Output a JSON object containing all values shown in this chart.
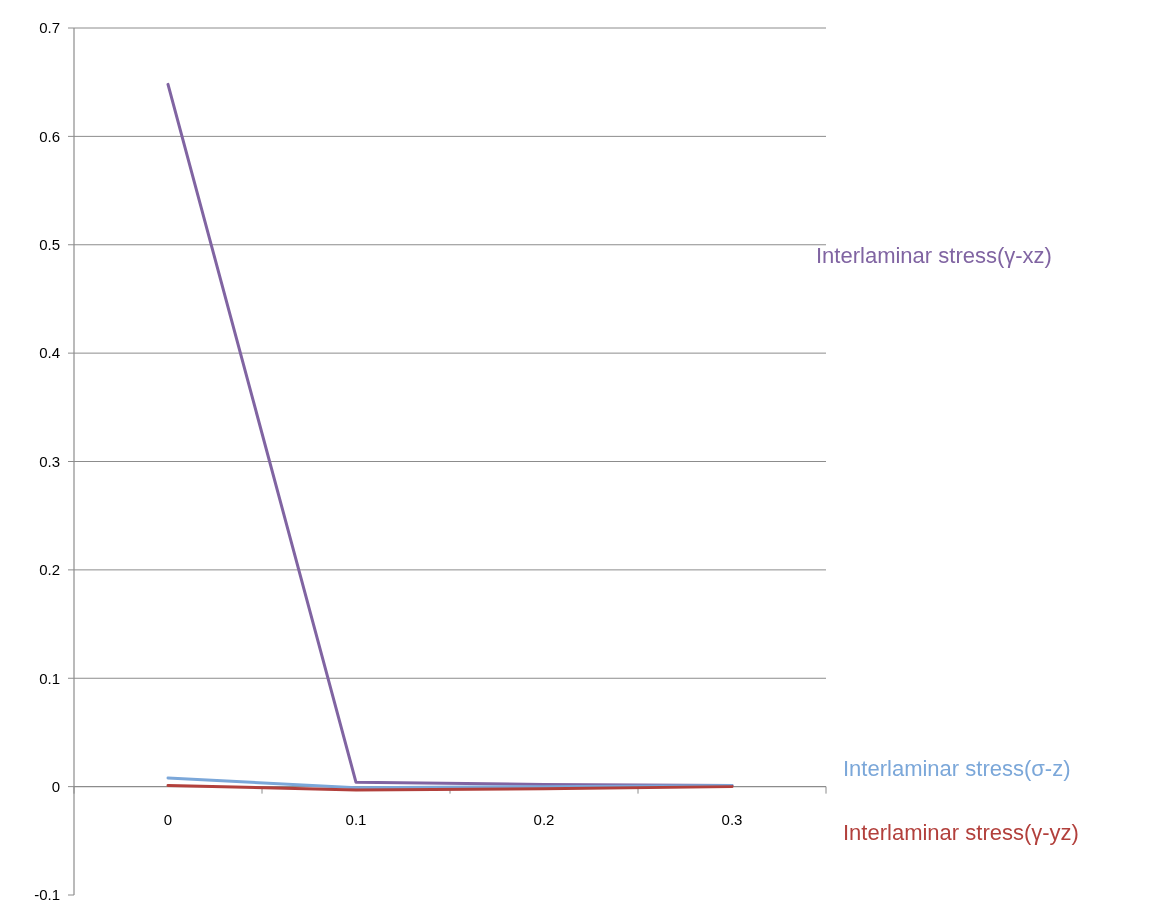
{
  "chart_data": {
    "type": "line",
    "categories": [
      "0",
      "0.1",
      "0.2",
      "0.3"
    ],
    "series": [
      {
        "name": "Interlaminar stress(γ-xz)",
        "color": "#8064a2",
        "values": [
          0.648,
          0.004,
          0.002,
          0.001
        ]
      },
      {
        "name": "Interlaminar stress(σ-z)",
        "color": "#7ba7d9",
        "values": [
          0.008,
          -0.001,
          0.0,
          0.001
        ]
      },
      {
        "name": "Interlaminar stress(γ-yz)",
        "color": "#b2403c",
        "values": [
          0.001,
          -0.003,
          -0.002,
          0.0
        ]
      }
    ],
    "ylim": [
      -0.1,
      0.7
    ],
    "yticks": [
      -0.1,
      0,
      0.1,
      0.2,
      0.3,
      0.4,
      0.5,
      0.6,
      0.7
    ],
    "grid": "y",
    "legend": "right",
    "marker": "none",
    "line_style": "solid"
  }
}
